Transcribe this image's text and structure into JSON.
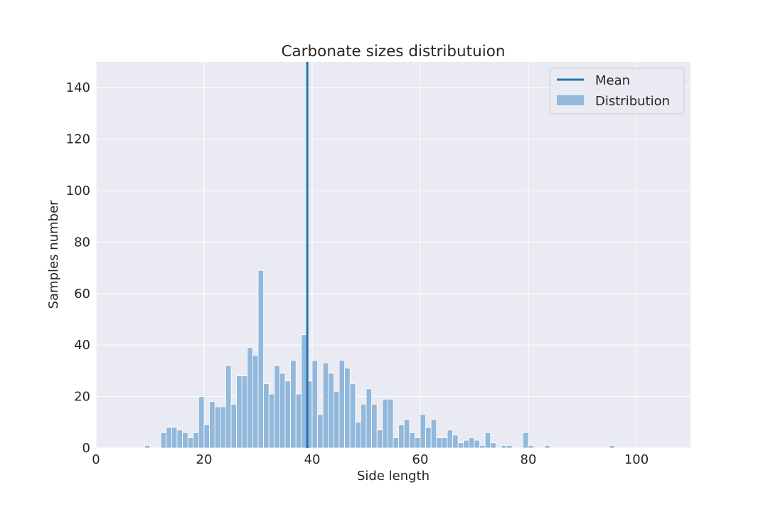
{
  "chart_data": {
    "type": "bar",
    "title": "Carbonate sizes distributuion",
    "xlabel": "Side length",
    "ylabel": "Samples number",
    "xlim": [
      0,
      110
    ],
    "ylim": [
      0,
      150
    ],
    "xticks": [
      0,
      20,
      40,
      60,
      80,
      100
    ],
    "yticks": [
      0,
      20,
      40,
      60,
      80,
      100,
      120,
      140
    ],
    "grid": true,
    "legend_position": "top-right",
    "mean": 39.1,
    "bin_width": 1,
    "series": [
      {
        "name": "Distribution",
        "kind": "histogram",
        "color": "#92b8db",
        "bins": [
          {
            "x": 9,
            "y": 1
          },
          {
            "x": 12,
            "y": 6
          },
          {
            "x": 13,
            "y": 8
          },
          {
            "x": 14,
            "y": 8
          },
          {
            "x": 15,
            "y": 7
          },
          {
            "x": 16,
            "y": 6
          },
          {
            "x": 17,
            "y": 4
          },
          {
            "x": 18,
            "y": 6
          },
          {
            "x": 19,
            "y": 20
          },
          {
            "x": 20,
            "y": 9
          },
          {
            "x": 21,
            "y": 18
          },
          {
            "x": 22,
            "y": 16
          },
          {
            "x": 23,
            "y": 16
          },
          {
            "x": 24,
            "y": 32
          },
          {
            "x": 25,
            "y": 17
          },
          {
            "x": 26,
            "y": 28
          },
          {
            "x": 27,
            "y": 28
          },
          {
            "x": 28,
            "y": 39
          },
          {
            "x": 29,
            "y": 36
          },
          {
            "x": 30,
            "y": 69
          },
          {
            "x": 31,
            "y": 25
          },
          {
            "x": 32,
            "y": 21
          },
          {
            "x": 33,
            "y": 32
          },
          {
            "x": 34,
            "y": 29
          },
          {
            "x": 35,
            "y": 26
          },
          {
            "x": 36,
            "y": 34
          },
          {
            "x": 37,
            "y": 21
          },
          {
            "x": 38,
            "y": 44
          },
          {
            "x": 39,
            "y": 26
          },
          {
            "x": 40,
            "y": 34
          },
          {
            "x": 41,
            "y": 13
          },
          {
            "x": 42,
            "y": 33
          },
          {
            "x": 43,
            "y": 29
          },
          {
            "x": 44,
            "y": 22
          },
          {
            "x": 45,
            "y": 34
          },
          {
            "x": 46,
            "y": 31
          },
          {
            "x": 47,
            "y": 25
          },
          {
            "x": 48,
            "y": 10
          },
          {
            "x": 49,
            "y": 17
          },
          {
            "x": 50,
            "y": 23
          },
          {
            "x": 51,
            "y": 17
          },
          {
            "x": 52,
            "y": 7
          },
          {
            "x": 53,
            "y": 19
          },
          {
            "x": 54,
            "y": 19
          },
          {
            "x": 55,
            "y": 4
          },
          {
            "x": 56,
            "y": 9
          },
          {
            "x": 57,
            "y": 11
          },
          {
            "x": 58,
            "y": 6
          },
          {
            "x": 59,
            "y": 4
          },
          {
            "x": 60,
            "y": 13
          },
          {
            "x": 61,
            "y": 8
          },
          {
            "x": 62,
            "y": 11
          },
          {
            "x": 63,
            "y": 4
          },
          {
            "x": 64,
            "y": 4
          },
          {
            "x": 65,
            "y": 7
          },
          {
            "x": 66,
            "y": 5
          },
          {
            "x": 67,
            "y": 2
          },
          {
            "x": 68,
            "y": 3
          },
          {
            "x": 69,
            "y": 4
          },
          {
            "x": 70,
            "y": 3
          },
          {
            "x": 71,
            "y": 1
          },
          {
            "x": 72,
            "y": 6
          },
          {
            "x": 73,
            "y": 2
          },
          {
            "x": 75,
            "y": 1
          },
          {
            "x": 76,
            "y": 1
          },
          {
            "x": 79,
            "y": 6
          },
          {
            "x": 80,
            "y": 1
          },
          {
            "x": 83,
            "y": 1
          },
          {
            "x": 95,
            "y": 1
          }
        ]
      },
      {
        "name": "Mean",
        "kind": "vline",
        "color": "#1f77b4",
        "value": 39.1
      }
    ]
  }
}
